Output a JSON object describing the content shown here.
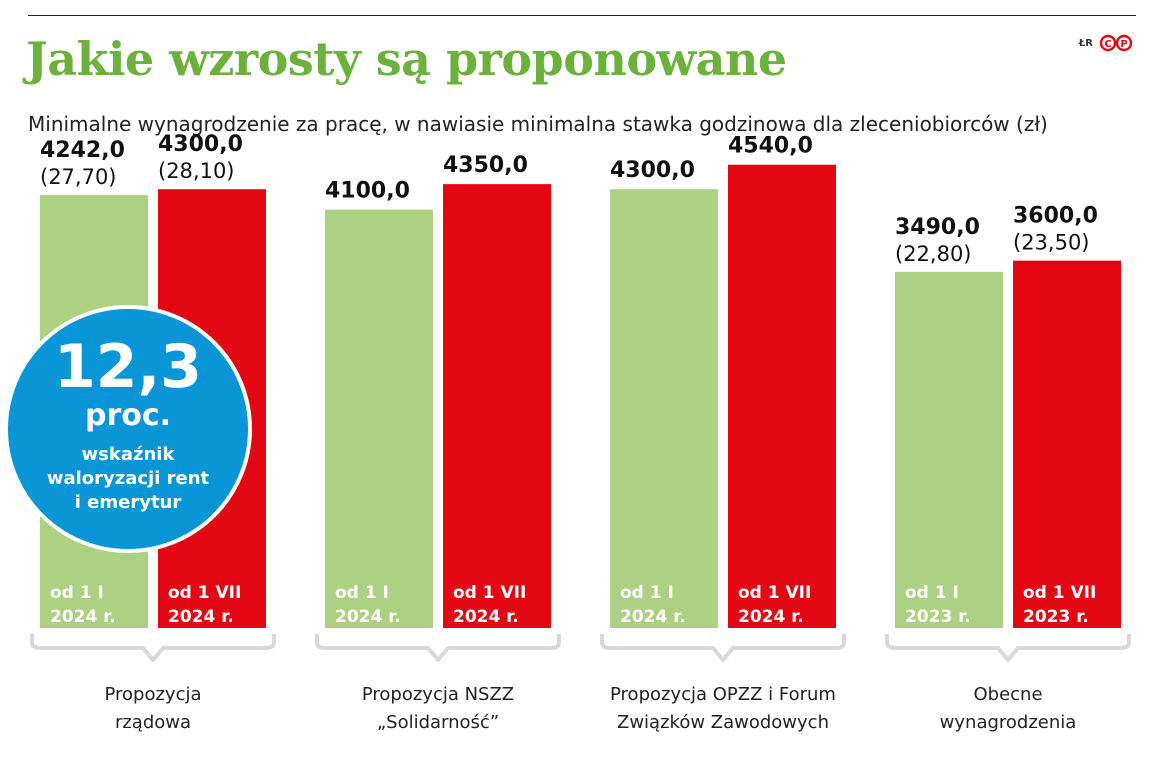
{
  "title": "Jakie wzrosty są proponowane",
  "subtitle": "Minimalne wynagrodzenie za pracę, w nawiasie minimalna stawka godzinowa dla zleceniobiorców (zł)",
  "credit": "ŁR",
  "logo": "CP",
  "colors": {
    "green_bar": "#acd182",
    "red_bar": "#e30613",
    "title": "#6bb13c",
    "badge": "#0a96d6",
    "bracket": "#d8d8d8"
  },
  "badge": {
    "value": "12,3",
    "unit": "proc.",
    "description": "wskaźnik\nwaloryzacji rent\ni emerytur"
  },
  "chart_data": {
    "type": "bar",
    "ylim": [
      0,
      4900
    ],
    "groups": [
      {
        "label": "Propozycja\nrządowa",
        "bars": [
          {
            "series": "green",
            "value": 4242.0,
            "value_label": "4242,0",
            "hourly_label": "(27,70)",
            "period_label": "od 1 I\n2024 r."
          },
          {
            "series": "red",
            "value": 4300.0,
            "value_label": "4300,0",
            "hourly_label": "(28,10)",
            "period_label": "od 1 VII\n2024 r."
          }
        ]
      },
      {
        "label": "Propozycja NSZZ\n„Solidarność”",
        "bars": [
          {
            "series": "green",
            "value": 4100.0,
            "value_label": "4100,0",
            "hourly_label": "",
            "period_label": "od 1 I\n2024 r."
          },
          {
            "series": "red",
            "value": 4350.0,
            "value_label": "4350,0",
            "hourly_label": "",
            "period_label": "od 1 VII\n2024 r."
          }
        ]
      },
      {
        "label": "Propozycja OPZZ i Forum\nZwiązków Zawodowych",
        "bars": [
          {
            "series": "green",
            "value": 4300.0,
            "value_label": "4300,0",
            "hourly_label": "",
            "period_label": "od 1 I\n2024 r."
          },
          {
            "series": "red",
            "value": 4540.0,
            "value_label": "4540,0",
            "hourly_label": "",
            "period_label": "od 1 VII\n2024 r."
          }
        ]
      },
      {
        "label": "Obecne\nwynagrodzenia",
        "bars": [
          {
            "series": "green",
            "value": 3490.0,
            "value_label": "3490,0",
            "hourly_label": "(22,80)",
            "period_label": "od 1 I\n2023 r."
          },
          {
            "series": "red",
            "value": 3600.0,
            "value_label": "3600,0",
            "hourly_label": "(23,50)",
            "period_label": "od 1 VII\n2023 r."
          }
        ]
      }
    ]
  }
}
